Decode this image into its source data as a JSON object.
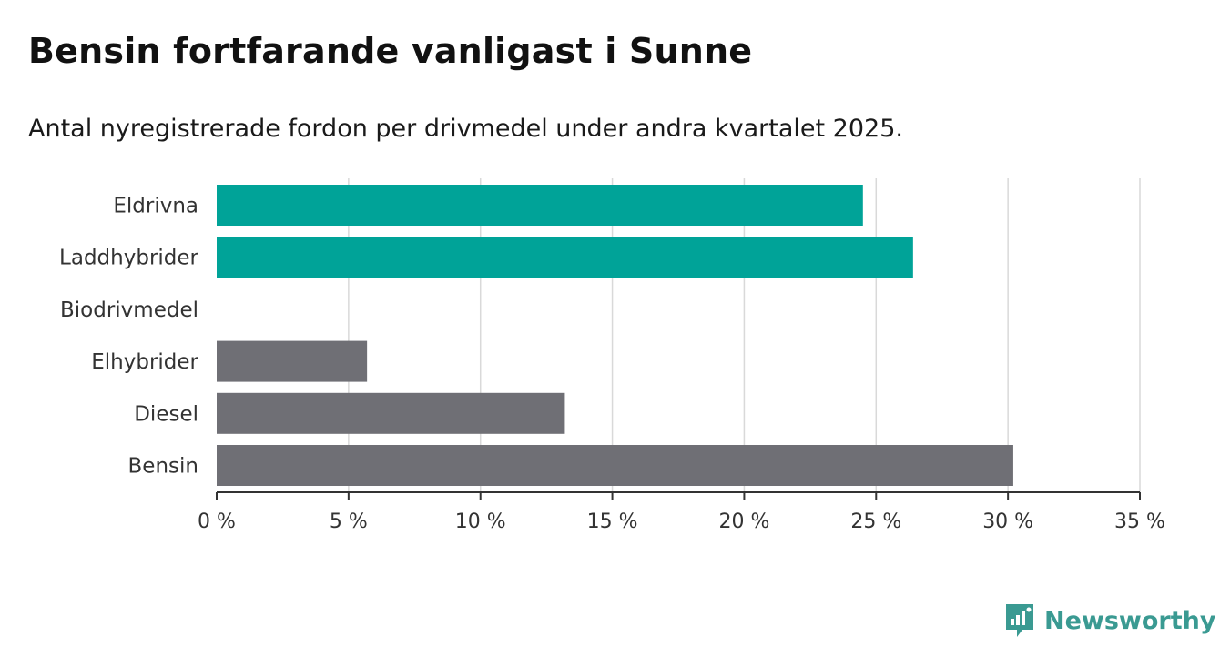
{
  "title": "Bensin fortfarande vanligast i Sunne",
  "subtitle": "Antal nyregistrerade fordon per drivmedel under andra kvartalet 2025.",
  "brand": {
    "name": "Newsworthy",
    "color": "#3a9a92",
    "icon": "newsworthy-logo-icon"
  },
  "chart_data": {
    "type": "bar",
    "orientation": "horizontal",
    "categories": [
      "Eldrivna",
      "Laddhybrider",
      "Biodrivmedel",
      "Elhybrider",
      "Diesel",
      "Bensin"
    ],
    "values": [
      24.5,
      26.4,
      0,
      5.7,
      13.2,
      30.2
    ],
    "bar_colors": [
      "#00a398",
      "#00a398",
      "#00a398",
      "#6f6f75",
      "#6f6f75",
      "#6f6f75"
    ],
    "xlim": [
      0,
      35
    ],
    "xticks": [
      0,
      5,
      10,
      15,
      20,
      25,
      30,
      35
    ],
    "xtick_labels": [
      "0 %",
      "5 %",
      "10 %",
      "15 %",
      "20 %",
      "25 %",
      "30 %",
      "35 %"
    ],
    "grid": true,
    "xlabel": "",
    "ylabel": ""
  }
}
